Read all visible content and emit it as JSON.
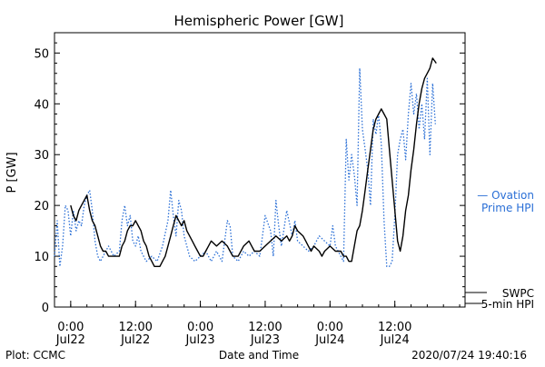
{
  "chart_data": {
    "type": "line",
    "title": "Hemispheric Power [GW]",
    "ylabel": "P [GW]",
    "xlabel": "Date and Time",
    "ylim": [
      0,
      54
    ],
    "yticks": [
      0,
      10,
      20,
      30,
      40,
      50
    ],
    "xlim": [
      "2020-07-21T21:00",
      "2020-07-25T01:00"
    ],
    "xticks": [
      {
        "time": "2020-07-22T00:00",
        "label_time": "0:00",
        "label_date": "Jul22"
      },
      {
        "time": "2020-07-22T12:00",
        "label_time": "12:00",
        "label_date": "Jul22"
      },
      {
        "time": "2020-07-23T00:00",
        "label_time": "0:00",
        "label_date": "Jul23"
      },
      {
        "time": "2020-07-23T12:00",
        "label_time": "12:00",
        "label_date": "Jul23"
      },
      {
        "time": "2020-07-24T00:00",
        "label_time": "0:00",
        "label_date": "Jul24"
      },
      {
        "time": "2020-07-24T12:00",
        "label_time": "12:00",
        "label_date": "Jul24"
      }
    ],
    "series": [
      {
        "name": "SWPC 5-min HPI",
        "color": "#000000",
        "style": "solid",
        "points": [
          [
            "2020-07-22T00:00",
            20
          ],
          [
            "2020-07-22T00:30",
            18
          ],
          [
            "2020-07-22T01:00",
            17
          ],
          [
            "2020-07-22T01:30",
            19
          ],
          [
            "2020-07-22T02:00",
            20
          ],
          [
            "2020-07-22T02:30",
            21
          ],
          [
            "2020-07-22T03:00",
            22
          ],
          [
            "2020-07-22T03:30",
            19
          ],
          [
            "2020-07-22T04:00",
            17
          ],
          [
            "2020-07-22T04:30",
            16
          ],
          [
            "2020-07-22T05:00",
            14
          ],
          [
            "2020-07-22T05:30",
            12
          ],
          [
            "2020-07-22T06:00",
            11
          ],
          [
            "2020-07-22T06:30",
            11
          ],
          [
            "2020-07-22T07:00",
            10
          ],
          [
            "2020-07-22T08:00",
            10
          ],
          [
            "2020-07-22T09:00",
            10
          ],
          [
            "2020-07-22T09:30",
            12
          ],
          [
            "2020-07-22T10:00",
            13
          ],
          [
            "2020-07-22T10:30",
            15
          ],
          [
            "2020-07-22T11:00",
            16
          ],
          [
            "2020-07-22T11:30",
            16
          ],
          [
            "2020-07-22T12:00",
            17
          ],
          [
            "2020-07-22T12:30",
            16
          ],
          [
            "2020-07-22T13:00",
            15
          ],
          [
            "2020-07-22T13:30",
            13
          ],
          [
            "2020-07-22T14:00",
            12
          ],
          [
            "2020-07-22T14:30",
            10
          ],
          [
            "2020-07-22T15:00",
            9
          ],
          [
            "2020-07-22T15:30",
            8
          ],
          [
            "2020-07-22T16:00",
            8
          ],
          [
            "2020-07-22T16:30",
            8
          ],
          [
            "2020-07-22T17:00",
            9
          ],
          [
            "2020-07-22T17:30",
            10
          ],
          [
            "2020-07-22T18:00",
            12
          ],
          [
            "2020-07-22T18:30",
            14
          ],
          [
            "2020-07-22T19:00",
            16
          ],
          [
            "2020-07-22T19:30",
            18
          ],
          [
            "2020-07-22T20:00",
            17
          ],
          [
            "2020-07-22T20:30",
            16
          ],
          [
            "2020-07-22T21:00",
            17
          ],
          [
            "2020-07-22T21:30",
            15
          ],
          [
            "2020-07-22T22:00",
            14
          ],
          [
            "2020-07-22T22:30",
            13
          ],
          [
            "2020-07-22T23:00",
            12
          ],
          [
            "2020-07-22T23:30",
            11
          ],
          [
            "2020-07-23T00:00",
            10
          ],
          [
            "2020-07-23T00:30",
            10
          ],
          [
            "2020-07-23T01:00",
            11
          ],
          [
            "2020-07-23T01:30",
            12
          ],
          [
            "2020-07-23T02:00",
            13
          ],
          [
            "2020-07-23T03:00",
            12
          ],
          [
            "2020-07-23T04:00",
            13
          ],
          [
            "2020-07-23T05:00",
            12
          ],
          [
            "2020-07-23T05:30",
            11
          ],
          [
            "2020-07-23T06:00",
            10
          ],
          [
            "2020-07-23T07:00",
            10
          ],
          [
            "2020-07-23T08:00",
            12
          ],
          [
            "2020-07-23T09:00",
            13
          ],
          [
            "2020-07-23T09:30",
            12
          ],
          [
            "2020-07-23T10:00",
            11
          ],
          [
            "2020-07-23T11:00",
            11
          ],
          [
            "2020-07-23T12:00",
            12
          ],
          [
            "2020-07-23T13:00",
            13
          ],
          [
            "2020-07-23T14:00",
            14
          ],
          [
            "2020-07-23T15:00",
            13
          ],
          [
            "2020-07-23T16:00",
            14
          ],
          [
            "2020-07-23T16:30",
            13
          ],
          [
            "2020-07-23T17:00",
            14
          ],
          [
            "2020-07-23T17:30",
            16
          ],
          [
            "2020-07-23T18:00",
            15
          ],
          [
            "2020-07-23T19:00",
            14
          ],
          [
            "2020-07-23T19:30",
            13
          ],
          [
            "2020-07-23T20:00",
            12
          ],
          [
            "2020-07-23T20:30",
            11
          ],
          [
            "2020-07-23T21:00",
            12
          ],
          [
            "2020-07-23T22:00",
            11
          ],
          [
            "2020-07-23T22:30",
            10
          ],
          [
            "2020-07-23T23:00",
            11
          ],
          [
            "2020-07-24T00:00",
            12
          ],
          [
            "2020-07-24T01:00",
            11
          ],
          [
            "2020-07-24T02:00",
            11
          ],
          [
            "2020-07-24T02:30",
            10
          ],
          [
            "2020-07-24T03:00",
            10
          ],
          [
            "2020-07-24T03:30",
            9
          ],
          [
            "2020-07-24T04:00",
            9
          ],
          [
            "2020-07-24T04:30",
            12
          ],
          [
            "2020-07-24T05:00",
            15
          ],
          [
            "2020-07-24T05:30",
            16
          ],
          [
            "2020-07-24T06:00",
            19
          ],
          [
            "2020-07-24T06:30",
            23
          ],
          [
            "2020-07-24T07:00",
            27
          ],
          [
            "2020-07-24T07:30",
            31
          ],
          [
            "2020-07-24T08:00",
            35
          ],
          [
            "2020-07-24T08:30",
            37
          ],
          [
            "2020-07-24T09:00",
            38
          ],
          [
            "2020-07-24T09:30",
            39
          ],
          [
            "2020-07-24T10:00",
            38
          ],
          [
            "2020-07-24T10:30",
            37
          ],
          [
            "2020-07-24T11:00",
            31
          ],
          [
            "2020-07-24T11:30",
            25
          ],
          [
            "2020-07-24T12:00",
            19
          ],
          [
            "2020-07-24T12:30",
            13
          ],
          [
            "2020-07-24T13:00",
            11
          ],
          [
            "2020-07-24T13:30",
            14
          ],
          [
            "2020-07-24T14:00",
            19
          ],
          [
            "2020-07-24T14:30",
            22
          ],
          [
            "2020-07-24T15:00",
            27
          ],
          [
            "2020-07-24T15:30",
            31
          ],
          [
            "2020-07-24T16:00",
            36
          ],
          [
            "2020-07-24T16:30",
            40
          ],
          [
            "2020-07-24T17:00",
            43
          ],
          [
            "2020-07-24T17:30",
            45
          ],
          [
            "2020-07-24T18:00",
            46
          ],
          [
            "2020-07-24T18:30",
            47
          ],
          [
            "2020-07-24T19:00",
            49
          ],
          [
            "2020-07-24T19:40",
            48
          ]
        ]
      },
      {
        "name": "Ovation Prime HPI",
        "color": "#2a6fd6",
        "style": "dotted",
        "points": [
          [
            "2020-07-21T21:00",
            10
          ],
          [
            "2020-07-21T21:30",
            17
          ],
          [
            "2020-07-21T22:00",
            8
          ],
          [
            "2020-07-21T22:30",
            12
          ],
          [
            "2020-07-21T23:00",
            20
          ],
          [
            "2020-07-21T23:30",
            19
          ],
          [
            "2020-07-22T00:00",
            14
          ],
          [
            "2020-07-22T00:30",
            19
          ],
          [
            "2020-07-22T01:00",
            15
          ],
          [
            "2020-07-22T01:30",
            17
          ],
          [
            "2020-07-22T02:00",
            16
          ],
          [
            "2020-07-22T02:30",
            20
          ],
          [
            "2020-07-22T03:00",
            22
          ],
          [
            "2020-07-22T03:30",
            23
          ],
          [
            "2020-07-22T04:00",
            19
          ],
          [
            "2020-07-22T04:30",
            13
          ],
          [
            "2020-07-22T05:00",
            10
          ],
          [
            "2020-07-22T05:30",
            9
          ],
          [
            "2020-07-22T06:00",
            10
          ],
          [
            "2020-07-22T07:00",
            12
          ],
          [
            "2020-07-22T07:30",
            11
          ],
          [
            "2020-07-22T08:00",
            10
          ],
          [
            "2020-07-22T09:00",
            11
          ],
          [
            "2020-07-22T09:30",
            17
          ],
          [
            "2020-07-22T10:00",
            20
          ],
          [
            "2020-07-22T10:30",
            16
          ],
          [
            "2020-07-22T11:00",
            18
          ],
          [
            "2020-07-22T11:30",
            13
          ],
          [
            "2020-07-22T12:00",
            12
          ],
          [
            "2020-07-22T12:30",
            14
          ],
          [
            "2020-07-22T13:00",
            11
          ],
          [
            "2020-07-22T13:30",
            10
          ],
          [
            "2020-07-22T14:00",
            9
          ],
          [
            "2020-07-22T15:00",
            10
          ],
          [
            "2020-07-22T16:00",
            9
          ],
          [
            "2020-07-22T17:00",
            12
          ],
          [
            "2020-07-22T18:00",
            17
          ],
          [
            "2020-07-22T18:30",
            23
          ],
          [
            "2020-07-22T19:00",
            18
          ],
          [
            "2020-07-22T19:30",
            14
          ],
          [
            "2020-07-22T20:00",
            21
          ],
          [
            "2020-07-22T20:30",
            19
          ],
          [
            "2020-07-22T21:00",
            14
          ],
          [
            "2020-07-22T21:30",
            12
          ],
          [
            "2020-07-22T22:00",
            10
          ],
          [
            "2020-07-22T23:00",
            9
          ],
          [
            "2020-07-23T00:00",
            10
          ],
          [
            "2020-07-23T01:00",
            11
          ],
          [
            "2020-07-23T02:00",
            9
          ],
          [
            "2020-07-23T03:00",
            11
          ],
          [
            "2020-07-23T04:00",
            9
          ],
          [
            "2020-07-23T05:00",
            17
          ],
          [
            "2020-07-23T05:30",
            16
          ],
          [
            "2020-07-23T06:00",
            10
          ],
          [
            "2020-07-23T07:00",
            9
          ],
          [
            "2020-07-23T08:00",
            11
          ],
          [
            "2020-07-23T09:00",
            10
          ],
          [
            "2020-07-23T10:00",
            11
          ],
          [
            "2020-07-23T11:00",
            10
          ],
          [
            "2020-07-23T12:00",
            18
          ],
          [
            "2020-07-23T13:00",
            15
          ],
          [
            "2020-07-23T13:30",
            10
          ],
          [
            "2020-07-23T14:00",
            21
          ],
          [
            "2020-07-23T14:30",
            16
          ],
          [
            "2020-07-23T15:00",
            12
          ],
          [
            "2020-07-23T16:00",
            19
          ],
          [
            "2020-07-23T17:00",
            14
          ],
          [
            "2020-07-23T17:30",
            17
          ],
          [
            "2020-07-23T18:00",
            13
          ],
          [
            "2020-07-23T19:00",
            12
          ],
          [
            "2020-07-23T20:00",
            11
          ],
          [
            "2020-07-23T21:00",
            12
          ],
          [
            "2020-07-23T22:00",
            14
          ],
          [
            "2020-07-24T00:00",
            12
          ],
          [
            "2020-07-24T00:30",
            16
          ],
          [
            "2020-07-24T01:00",
            12
          ],
          [
            "2020-07-24T02:00",
            10
          ],
          [
            "2020-07-24T02:30",
            9
          ],
          [
            "2020-07-24T03:00",
            33
          ],
          [
            "2020-07-24T03:30",
            25
          ],
          [
            "2020-07-24T04:00",
            30
          ],
          [
            "2020-07-24T04:30",
            26
          ],
          [
            "2020-07-24T05:00",
            20
          ],
          [
            "2020-07-24T05:30",
            47
          ],
          [
            "2020-07-24T06:00",
            35
          ],
          [
            "2020-07-24T06:30",
            31
          ],
          [
            "2020-07-24T07:00",
            27
          ],
          [
            "2020-07-24T07:30",
            20
          ],
          [
            "2020-07-24T08:00",
            37
          ],
          [
            "2020-07-24T08:30",
            34
          ],
          [
            "2020-07-24T09:00",
            38
          ],
          [
            "2020-07-24T09:30",
            32
          ],
          [
            "2020-07-24T10:00",
            17
          ],
          [
            "2020-07-24T10:30",
            8
          ],
          [
            "2020-07-24T11:00",
            8
          ],
          [
            "2020-07-24T11:30",
            9
          ],
          [
            "2020-07-24T12:00",
            18
          ],
          [
            "2020-07-24T12:30",
            30
          ],
          [
            "2020-07-24T13:00",
            33
          ],
          [
            "2020-07-24T13:30",
            35
          ],
          [
            "2020-07-24T14:00",
            29
          ],
          [
            "2020-07-24T14:30",
            38
          ],
          [
            "2020-07-24T15:00",
            44
          ],
          [
            "2020-07-24T15:30",
            38
          ],
          [
            "2020-07-24T16:00",
            42
          ],
          [
            "2020-07-24T16:30",
            35
          ],
          [
            "2020-07-24T17:00",
            40
          ],
          [
            "2020-07-24T17:30",
            33
          ],
          [
            "2020-07-24T18:00",
            45
          ],
          [
            "2020-07-24T18:30",
            30
          ],
          [
            "2020-07-24T19:00",
            44
          ],
          [
            "2020-07-24T19:30",
            36
          ]
        ]
      }
    ],
    "legend": [
      {
        "series": 1,
        "text_line1": "— Ovation",
        "text_line2": "Prime HPI",
        "color": "#2a6fd6",
        "placement": "right-middle"
      },
      {
        "series": 0,
        "text_line1": "SWPC",
        "text_line2": "5-min HPI",
        "color": "#000000",
        "placement": "right-bottom"
      }
    ],
    "grid": false
  },
  "footer": {
    "left": "Plot: CCMC",
    "center": "Date and Time",
    "right": "2020/07/24 19:40:16"
  }
}
